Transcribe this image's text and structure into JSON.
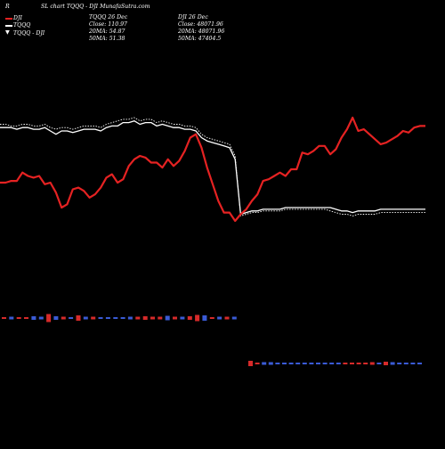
{
  "header": {
    "corner_letter": "R",
    "title": "SL chart TQQQ - DJI MunafaSutra.com"
  },
  "legend": {
    "items": [
      {
        "label": "DJI",
        "color": "#e52222"
      },
      {
        "label": "TQQQ",
        "color": "#ffffff"
      },
      {
        "label": "TQQQ - DJI",
        "color": "#ffffff"
      }
    ]
  },
  "info_left": {
    "line1": "TQQQ 26 Dec",
    "line2": "Close: 110.97",
    "line3": "20MA: 54.87",
    "line4": "50MA: 51.38"
  },
  "info_right": {
    "line1": "DJI 26 Dec",
    "line2": "Close: 48071.96",
    "line3": "20MA: 48071.96",
    "line4": "50MA: 47404.5"
  },
  "colors": {
    "background": "#000000",
    "dji": "#e52222",
    "tqqq": "#ffffff",
    "bar_up": "#3a5bd6",
    "bar_down": "#d62a2a"
  },
  "chart_data": {
    "type": "line",
    "y_axis_visible": false,
    "x_axis_visible": false,
    "grid": false,
    "legend_placement": "top-left",
    "series": [
      {
        "name": "DJI",
        "color": "#e52222",
        "values": [
          61,
          61,
          62,
          62,
          67,
          65,
          64,
          65,
          60,
          61,
          55,
          46,
          48,
          57,
          58,
          56,
          52,
          54,
          58,
          64,
          66,
          61,
          63,
          71,
          75,
          77,
          76,
          73,
          73,
          70,
          75,
          71,
          74,
          80,
          88,
          90,
          82,
          70,
          60,
          50,
          43,
          43,
          38,
          42,
          45,
          50,
          54,
          62,
          63,
          65,
          67,
          65,
          69,
          69,
          79,
          78,
          80,
          83,
          83,
          78,
          81,
          88,
          93,
          100,
          92,
          93,
          90,
          87,
          84,
          85,
          87,
          89,
          92,
          91,
          94,
          95,
          95
        ]
      },
      {
        "name": "TQQQ",
        "color": "#ffffff",
        "values": [
          94,
          94,
          94,
          93,
          94,
          94,
          93,
          93,
          94,
          92,
          90,
          92,
          92,
          91,
          92,
          93,
          93,
          93,
          92,
          94,
          95,
          95,
          97,
          97,
          98,
          96,
          97,
          97,
          95,
          96,
          95,
          94,
          94,
          93,
          93,
          92,
          88,
          86,
          85,
          84,
          83,
          82,
          75,
          42,
          43,
          44,
          44,
          45,
          45,
          45,
          45,
          46,
          46,
          46,
          46,
          46,
          46,
          46,
          46,
          46,
          45,
          44,
          44,
          43,
          44,
          44,
          44,
          44,
          45,
          45,
          45,
          45,
          45,
          45,
          45,
          45,
          45
        ]
      },
      {
        "name": "TQQQ - DJI",
        "color": "#ffffff",
        "style": "dotted",
        "values": [
          96,
          96,
          95,
          95,
          96,
          96,
          95,
          95,
          96,
          94,
          93,
          94,
          94,
          93,
          94,
          95,
          95,
          95,
          94,
          96,
          97,
          98,
          99,
          99,
          100,
          98,
          99,
          99,
          97,
          98,
          97,
          96,
          96,
          95,
          95,
          94,
          90,
          88,
          87,
          86,
          85,
          84,
          77,
          41,
          42,
          43,
          43,
          44,
          44,
          44,
          44,
          45,
          45,
          45,
          45,
          45,
          45,
          45,
          45,
          44,
          43,
          42,
          42,
          41,
          42,
          42,
          42,
          42,
          43,
          43,
          43,
          43,
          43,
          43,
          43,
          43,
          43
        ]
      }
    ],
    "volume_bars": {
      "segment_1": [
        {
          "v": 2,
          "up": false
        },
        {
          "v": 3,
          "up": true
        },
        {
          "v": 2,
          "up": false
        },
        {
          "v": 2,
          "up": false
        },
        {
          "v": 4,
          "up": true
        },
        {
          "v": 3,
          "up": true
        },
        {
          "v": 9,
          "up": false
        },
        {
          "v": 4,
          "up": true
        },
        {
          "v": 3,
          "up": false
        },
        {
          "v": 2,
          "up": true
        },
        {
          "v": 6,
          "up": false
        },
        {
          "v": 3,
          "up": true
        },
        {
          "v": 3,
          "up": false
        },
        {
          "v": 2,
          "up": true
        },
        {
          "v": 2,
          "up": true
        },
        {
          "v": 2,
          "up": true
        },
        {
          "v": 2,
          "up": true
        },
        {
          "v": 3,
          "up": true
        },
        {
          "v": 3,
          "up": false
        },
        {
          "v": 4,
          "up": false
        },
        {
          "v": 3,
          "up": false
        },
        {
          "v": 3,
          "up": false
        },
        {
          "v": 5,
          "up": true
        },
        {
          "v": 3,
          "up": false
        },
        {
          "v": 3,
          "up": true
        },
        {
          "v": 4,
          "up": false
        },
        {
          "v": 7,
          "up": false
        },
        {
          "v": 6,
          "up": true
        },
        {
          "v": 2,
          "up": false
        },
        {
          "v": 3,
          "up": true
        },
        {
          "v": 3,
          "up": false
        },
        {
          "v": 3,
          "up": true
        }
      ],
      "segment_2": [
        {
          "v": 6,
          "up": false
        },
        {
          "v": 2,
          "up": false
        },
        {
          "v": 3,
          "up": true
        },
        {
          "v": 3,
          "up": true
        },
        {
          "v": 2,
          "up": true
        },
        {
          "v": 2,
          "up": true
        },
        {
          "v": 2,
          "up": true
        },
        {
          "v": 2,
          "up": true
        },
        {
          "v": 2,
          "up": true
        },
        {
          "v": 2,
          "up": true
        },
        {
          "v": 2,
          "up": true
        },
        {
          "v": 2,
          "up": true
        },
        {
          "v": 2,
          "up": true
        },
        {
          "v": 2,
          "up": true
        },
        {
          "v": 2,
          "up": false
        },
        {
          "v": 2,
          "up": false
        },
        {
          "v": 2,
          "up": false
        },
        {
          "v": 2,
          "up": false
        },
        {
          "v": 3,
          "up": false
        },
        {
          "v": 2,
          "up": true
        },
        {
          "v": 4,
          "up": false
        },
        {
          "v": 3,
          "up": true
        },
        {
          "v": 2,
          "up": true
        },
        {
          "v": 2,
          "up": true
        },
        {
          "v": 2,
          "up": true
        },
        {
          "v": 2,
          "up": true
        }
      ]
    }
  }
}
